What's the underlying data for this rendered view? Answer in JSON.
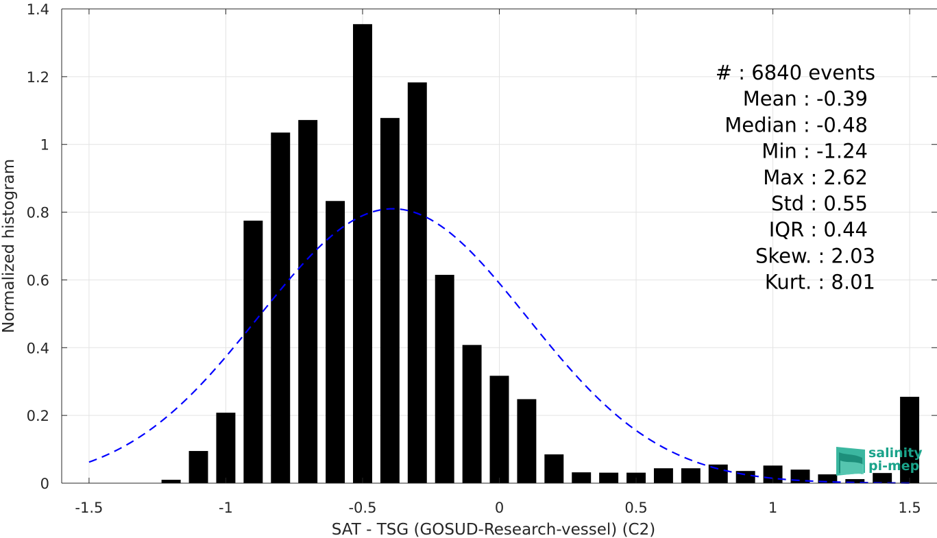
{
  "chart_data": {
    "type": "bar",
    "xlabel": "SAT - TSG (GOSUD-Research-vessel) (C2)",
    "ylabel": "Normalized histogram",
    "xlim": [
      -1.6,
      1.6
    ],
    "ylim": [
      0,
      1.4
    ],
    "x_ticks": [
      -1.5,
      -1,
      -0.5,
      0,
      0.5,
      1,
      1.5
    ],
    "x_tick_labels": [
      "-1.5",
      "-1",
      "-0.5",
      "0",
      "0.5",
      "1",
      "1.5"
    ],
    "y_ticks": [
      0,
      0.2,
      0.4,
      0.6,
      0.8,
      1,
      1.2,
      1.4
    ],
    "y_tick_labels": [
      "0",
      "0.2",
      "0.4",
      "0.6",
      "0.8",
      "1",
      "1.2",
      "1.4"
    ],
    "grid": true,
    "bar_width": 0.07,
    "bar_color": "#000000",
    "series": [
      {
        "x": [
          -1.5,
          -1.4,
          -1.3,
          -1.2,
          -1.1,
          -1.0,
          -0.9,
          -0.8,
          -0.7,
          -0.6,
          -0.5,
          -0.4,
          -0.3,
          -0.2,
          -0.1,
          0.0,
          0.1,
          0.2,
          0.3,
          0.4,
          0.5,
          0.6,
          0.7,
          0.8,
          0.9,
          1.0,
          1.1,
          1.2,
          1.3,
          1.4,
          1.5
        ],
        "values": [
          0,
          0,
          0,
          0.01,
          0.095,
          0.208,
          0.775,
          1.035,
          1.072,
          0.833,
          1.355,
          1.078,
          1.183,
          0.615,
          0.408,
          0.317,
          0.248,
          0.085,
          0.032,
          0.031,
          0.031,
          0.044,
          0.044,
          0.055,
          0.036,
          0.052,
          0.04,
          0.026,
          0.012,
          0.03,
          0.255
        ]
      }
    ],
    "fit_curve": {
      "type": "gaussian",
      "style": "dashed",
      "color": "#0000ff",
      "mean": -0.39,
      "std": 0.49,
      "peak": 0.81,
      "x_range": [
        -1.5,
        1.5
      ]
    },
    "annotations": [
      {
        "label": "#",
        "value": ": 6840 events"
      },
      {
        "label": "Mean",
        "value": ": -0.39"
      },
      {
        "label": "Median",
        "value": ": -0.48"
      },
      {
        "label": "Min",
        "value": ": -1.24"
      },
      {
        "label": "Max",
        "value": ": 2.62"
      },
      {
        "label": "Std",
        "value": ": 0.55"
      },
      {
        "label": "IQR",
        "value": ": 0.44"
      },
      {
        "label": "Skew.",
        "value": ": 2.03"
      },
      {
        "label": "Kurt.",
        "value": ": 8.01"
      }
    ]
  },
  "logo": {
    "line1": "salinity",
    "line2": "pi-mep",
    "color": "#1aa38a"
  }
}
